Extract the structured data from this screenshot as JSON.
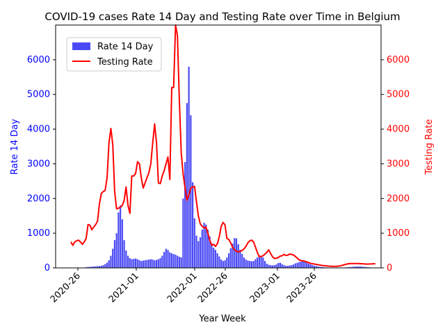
{
  "chart_data": {
    "type": "bar+line",
    "title": "COVID-19 cases Rate 14 Day and Testing Rate over Time in Belgium",
    "xlabel": "Year Week",
    "ylabel_left": "Rate 14 Day",
    "ylabel_right": "Testing Rate",
    "ylim_left": [
      0,
      7000
    ],
    "ylim_right": [
      0,
      7000
    ],
    "yticks": [
      0,
      1000,
      2000,
      3000,
      4000,
      5000,
      6000
    ],
    "xticks": [
      "2020-26",
      "2021-01",
      "2022-01",
      "2022-26",
      "2023-01",
      "2023-26"
    ],
    "legend": {
      "position": "upper-left",
      "entries": [
        "Rate 14 Day",
        "Testing Rate"
      ]
    },
    "colors": {
      "bars": "#4a4af5",
      "line": "#ff0000",
      "left_axis": "#0000ff",
      "right_axis": "#ff0000"
    },
    "series": [
      {
        "name": "Rate 14 Day",
        "kind": "bar",
        "values": [
          5,
          4,
          3,
          2,
          2,
          3,
          5,
          10,
          20,
          25,
          30,
          35,
          40,
          45,
          50,
          55,
          60,
          80,
          110,
          150,
          220,
          350,
          550,
          800,
          1000,
          1600,
          1800,
          1400,
          800,
          500,
          350,
          280,
          250,
          260,
          270,
          250,
          220,
          200,
          210,
          220,
          230,
          240,
          250,
          240,
          220,
          230,
          250,
          280,
          350,
          460,
          550,
          520,
          450,
          420,
          400,
          380,
          350,
          320,
          300,
          2000,
          3050,
          4750,
          5800,
          4400,
          2470,
          1430,
          930,
          770,
          880,
          1100,
          1300,
          1250,
          1100,
          900,
          700,
          580,
          520,
          420,
          330,
          240,
          200,
          220,
          300,
          420,
          570,
          700,
          860,
          850,
          680,
          520,
          400,
          300,
          240,
          210,
          200,
          190,
          200,
          250,
          300,
          360,
          350,
          300,
          200,
          120,
          90,
          80,
          70,
          80,
          100,
          140,
          150,
          110,
          80,
          60,
          60,
          70,
          80,
          100,
          130,
          150,
          170,
          180,
          190,
          180,
          150,
          120,
          100,
          80,
          60,
          50,
          40,
          30,
          25,
          20,
          15,
          12,
          10,
          8,
          8,
          8,
          8,
          8,
          8,
          10,
          12,
          15,
          20,
          25,
          30,
          35,
          40,
          42,
          40,
          35,
          30,
          25,
          20,
          15,
          10,
          8
        ]
      },
      {
        "name": "Testing Rate",
        "kind": "line",
        "values": [
          750,
          650,
          750,
          780,
          800,
          750,
          680,
          750,
          850,
          1250,
          1230,
          1100,
          1180,
          1250,
          1350,
          1850,
          2150,
          2200,
          2230,
          2600,
          3600,
          4020,
          3550,
          2200,
          1700,
          1720,
          1750,
          1800,
          1950,
          2330,
          1800,
          1570,
          2650,
          2650,
          2720,
          3060,
          3000,
          2600,
          2300,
          2450,
          2600,
          2750,
          3000,
          3600,
          4150,
          3600,
          2450,
          2430,
          2650,
          2800,
          3000,
          3200,
          2550,
          5200,
          5200,
          7000,
          6700,
          4850,
          3300,
          2700,
          2300,
          1950,
          2100,
          2300,
          2330,
          2350,
          1900,
          1500,
          1270,
          1200,
          1150,
          1180,
          1000,
          800,
          650,
          680,
          620,
          700,
          900,
          1200,
          1310,
          1240,
          850,
          820,
          720,
          600,
          520,
          480,
          460,
          480,
          500,
          550,
          620,
          720,
          780,
          800,
          750,
          600,
          450,
          320,
          330,
          350,
          400,
          450,
          520,
          410,
          320,
          270,
          280,
          300,
          340,
          350,
          390,
          360,
          370,
          400,
          390,
          370,
          330,
          280,
          230,
          210,
          200,
          190,
          170,
          150,
          130,
          120,
          110,
          100,
          90,
          80,
          70,
          65,
          60,
          55,
          50,
          45,
          45,
          45,
          48,
          55,
          65,
          80,
          95,
          110,
          120,
          125,
          125,
          125,
          125,
          125,
          120,
          120,
          115,
          110,
          110,
          112,
          115,
          118,
          120
        ]
      }
    ]
  }
}
